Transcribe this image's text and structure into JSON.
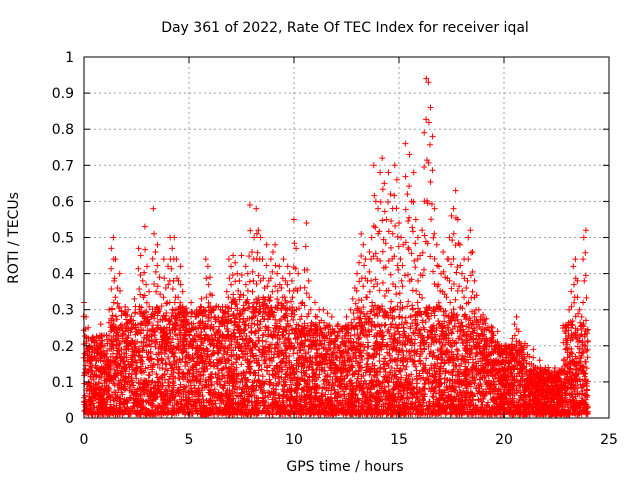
{
  "chart_data": {
    "type": "scatter",
    "title": "Day 361 of 2022, Rate Of TEC Index for receiver iqal",
    "xlabel": "GPS time / hours",
    "ylabel": "ROTI / TECUs",
    "xlim": [
      0,
      25
    ],
    "ylim": [
      0,
      1
    ],
    "x_ticks": [
      0,
      5,
      10,
      15,
      20,
      25
    ],
    "x_tick_labels": [
      "0",
      "5",
      "10",
      "15",
      "20",
      "25"
    ],
    "y_ticks": [
      0,
      0.1,
      0.2,
      0.3,
      0.4,
      0.5,
      0.6,
      0.7,
      0.8,
      0.9,
      1
    ],
    "y_tick_labels": [
      "0",
      "0.1",
      "0.2",
      "0.3",
      "0.4",
      "0.5",
      "0.6",
      "0.7",
      "0.8",
      "0.9",
      "1"
    ],
    "grid": true,
    "marker": "plus",
    "color": "#ff0000",
    "series": [
      {
        "name": "",
        "points": [
          [
            0.0,
            0.32
          ],
          [
            0.1,
            0.28
          ],
          [
            0.2,
            0.25
          ],
          [
            0.3,
            0.15
          ],
          [
            0.4,
            0.22
          ],
          [
            0.5,
            0.12
          ],
          [
            0.6,
            0.18
          ],
          [
            0.7,
            0.08
          ],
          [
            0.8,
            0.26
          ],
          [
            0.9,
            0.05
          ],
          [
            1.0,
            0.2
          ],
          [
            1.1,
            0.14
          ],
          [
            1.2,
            0.3
          ],
          [
            1.3,
            0.47
          ],
          [
            1.4,
            0.5
          ],
          [
            1.5,
            0.44
          ],
          [
            1.6,
            0.36
          ],
          [
            1.7,
            0.4
          ],
          [
            1.8,
            0.25
          ],
          [
            1.9,
            0.18
          ],
          [
            2.0,
            0.22
          ],
          [
            2.1,
            0.3
          ],
          [
            2.2,
            0.27
          ],
          [
            2.3,
            0.19
          ],
          [
            2.4,
            0.33
          ],
          [
            2.5,
            0.24
          ],
          [
            2.6,
            0.47
          ],
          [
            2.7,
            0.45
          ],
          [
            2.8,
            0.38
          ],
          [
            2.9,
            0.53
          ],
          [
            3.0,
            0.42
          ],
          [
            3.1,
            0.35
          ],
          [
            3.2,
            0.28
          ],
          [
            3.3,
            0.58
          ],
          [
            3.4,
            0.46
          ],
          [
            3.5,
            0.48
          ],
          [
            3.6,
            0.39
          ],
          [
            3.7,
            0.31
          ],
          [
            3.8,
            0.44
          ],
          [
            3.9,
            0.36
          ],
          [
            4.0,
            0.42
          ],
          [
            4.1,
            0.5
          ],
          [
            4.2,
            0.47
          ],
          [
            4.3,
            0.5
          ],
          [
            4.4,
            0.44
          ],
          [
            4.5,
            0.38
          ],
          [
            4.6,
            0.42
          ],
          [
            4.7,
            0.35
          ],
          [
            4.8,
            0.3
          ],
          [
            4.9,
            0.24
          ],
          [
            5.0,
            0.26
          ],
          [
            5.1,
            0.32
          ],
          [
            5.2,
            0.22
          ],
          [
            5.3,
            0.28
          ],
          [
            5.4,
            0.2
          ],
          [
            5.5,
            0.3
          ],
          [
            5.6,
            0.33
          ],
          [
            5.7,
            0.25
          ],
          [
            5.8,
            0.44
          ],
          [
            5.9,
            0.42
          ],
          [
            6.0,
            0.39
          ],
          [
            6.1,
            0.34
          ],
          [
            6.2,
            0.28
          ],
          [
            6.3,
            0.31
          ],
          [
            6.4,
            0.24
          ],
          [
            6.5,
            0.3
          ],
          [
            6.6,
            0.26
          ],
          [
            6.7,
            0.29
          ],
          [
            6.8,
            0.35
          ],
          [
            6.9,
            0.44
          ],
          [
            7.0,
            0.42
          ],
          [
            7.1,
            0.45
          ],
          [
            7.2,
            0.43
          ],
          [
            7.3,
            0.4
          ],
          [
            7.4,
            0.38
          ],
          [
            7.5,
            0.45
          ],
          [
            7.6,
            0.34
          ],
          [
            7.7,
            0.42
          ],
          [
            7.8,
            0.4
          ],
          [
            7.9,
            0.59
          ],
          [
            8.0,
            0.46
          ],
          [
            8.1,
            0.5
          ],
          [
            8.2,
            0.58
          ],
          [
            8.3,
            0.52
          ],
          [
            8.4,
            0.5
          ],
          [
            8.5,
            0.44
          ],
          [
            8.6,
            0.36
          ],
          [
            8.7,
            0.48
          ],
          [
            8.8,
            0.38
          ],
          [
            8.9,
            0.44
          ],
          [
            9.0,
            0.46
          ],
          [
            9.1,
            0.48
          ],
          [
            9.2,
            0.4
          ],
          [
            9.3,
            0.42
          ],
          [
            9.4,
            0.36
          ],
          [
            9.5,
            0.44
          ],
          [
            9.6,
            0.38
          ],
          [
            9.7,
            0.42
          ],
          [
            9.8,
            0.4
          ],
          [
            9.9,
            0.38
          ],
          [
            10.0,
            0.55
          ],
          [
            10.1,
            0.47
          ],
          [
            10.2,
            0.4
          ],
          [
            10.3,
            0.36
          ],
          [
            10.4,
            0.32
          ],
          [
            10.5,
            0.41
          ],
          [
            10.6,
            0.54
          ],
          [
            10.7,
            0.38
          ],
          [
            10.8,
            0.3
          ],
          [
            10.9,
            0.26
          ],
          [
            11.0,
            0.32
          ],
          [
            11.1,
            0.28
          ],
          [
            11.2,
            0.3
          ],
          [
            11.3,
            0.27
          ],
          [
            11.4,
            0.3
          ],
          [
            11.5,
            0.25
          ],
          [
            11.6,
            0.29
          ],
          [
            11.7,
            0.22
          ],
          [
            11.8,
            0.28
          ],
          [
            11.9,
            0.24
          ],
          [
            12.0,
            0.22
          ],
          [
            12.1,
            0.26
          ],
          [
            12.2,
            0.18
          ],
          [
            12.3,
            0.24
          ],
          [
            12.4,
            0.21
          ],
          [
            12.5,
            0.28
          ],
          [
            12.6,
            0.25
          ],
          [
            12.7,
            0.3
          ],
          [
            12.8,
            0.33
          ],
          [
            12.9,
            0.36
          ],
          [
            13.0,
            0.4
          ],
          [
            13.1,
            0.43
          ],
          [
            13.2,
            0.51
          ],
          [
            13.3,
            0.48
          ],
          [
            13.4,
            0.44
          ],
          [
            13.5,
            0.38
          ],
          [
            13.6,
            0.46
          ],
          [
            13.7,
            0.5
          ],
          [
            13.8,
            0.7
          ],
          [
            13.9,
            0.6
          ],
          [
            14.0,
            0.58
          ],
          [
            14.1,
            0.68
          ],
          [
            14.2,
            0.72
          ],
          [
            14.3,
            0.65
          ],
          [
            14.4,
            0.55
          ],
          [
            14.5,
            0.68
          ],
          [
            14.6,
            0.62
          ],
          [
            14.7,
            0.58
          ],
          [
            14.8,
            0.7
          ],
          [
            14.9,
            0.66
          ],
          [
            15.0,
            0.54
          ],
          [
            15.1,
            0.5
          ],
          [
            15.2,
            0.48
          ],
          [
            15.3,
            0.76
          ],
          [
            15.4,
            0.62
          ],
          [
            15.5,
            0.73
          ],
          [
            15.6,
            0.6
          ],
          [
            15.7,
            0.68
          ],
          [
            15.8,
            0.55
          ],
          [
            15.9,
            0.5
          ],
          [
            16.0,
            0.45
          ],
          [
            16.1,
            0.52
          ],
          [
            16.2,
            0.79
          ],
          [
            16.3,
            0.94
          ],
          [
            16.4,
            0.93
          ],
          [
            16.5,
            0.86
          ],
          [
            16.6,
            0.78
          ],
          [
            16.7,
            0.58
          ],
          [
            16.8,
            0.48
          ],
          [
            16.9,
            0.42
          ],
          [
            17.0,
            0.4
          ],
          [
            17.1,
            0.46
          ],
          [
            17.2,
            0.39
          ],
          [
            17.3,
            0.44
          ],
          [
            17.4,
            0.5
          ],
          [
            17.5,
            0.56
          ],
          [
            17.6,
            0.58
          ],
          [
            17.7,
            0.63
          ],
          [
            17.8,
            0.55
          ],
          [
            17.9,
            0.48
          ],
          [
            18.0,
            0.4
          ],
          [
            18.1,
            0.44
          ],
          [
            18.2,
            0.36
          ],
          [
            18.3,
            0.5
          ],
          [
            18.4,
            0.52
          ],
          [
            18.5,
            0.46
          ],
          [
            18.6,
            0.38
          ],
          [
            18.7,
            0.34
          ],
          [
            18.8,
            0.3
          ],
          [
            18.9,
            0.28
          ],
          [
            19.0,
            0.26
          ],
          [
            19.1,
            0.22
          ],
          [
            19.2,
            0.25
          ],
          [
            19.3,
            0.2
          ],
          [
            19.4,
            0.24
          ],
          [
            19.5,
            0.18
          ],
          [
            19.6,
            0.21
          ],
          [
            19.7,
            0.24
          ],
          [
            19.8,
            0.2
          ],
          [
            19.9,
            0.18
          ],
          [
            20.0,
            0.16
          ],
          [
            20.1,
            0.2
          ],
          [
            20.2,
            0.15
          ],
          [
            20.3,
            0.18
          ],
          [
            20.4,
            0.22
          ],
          [
            20.5,
            0.26
          ],
          [
            20.6,
            0.28
          ],
          [
            20.7,
            0.24
          ],
          [
            20.8,
            0.2
          ],
          [
            20.9,
            0.18
          ],
          [
            21.0,
            0.16
          ],
          [
            21.1,
            0.2
          ],
          [
            21.2,
            0.17
          ],
          [
            21.3,
            0.15
          ],
          [
            21.4,
            0.19
          ],
          [
            21.5,
            0.14
          ],
          [
            21.6,
            0.12
          ],
          [
            21.7,
            0.16
          ],
          [
            21.8,
            0.13
          ],
          [
            21.9,
            0.1
          ],
          [
            22.0,
            0.12
          ],
          [
            22.1,
            0.14
          ],
          [
            22.2,
            0.11
          ],
          [
            22.3,
            0.1
          ],
          [
            22.4,
            0.13
          ],
          [
            22.5,
            0.12
          ],
          [
            22.6,
            0.08
          ],
          [
            22.7,
            0.1
          ],
          [
            22.8,
            0.09
          ],
          [
            22.9,
            0.12
          ],
          [
            23.0,
            0.22
          ],
          [
            23.1,
            0.3
          ],
          [
            23.2,
            0.35
          ],
          [
            23.3,
            0.42
          ],
          [
            23.4,
            0.44
          ],
          [
            23.5,
            0.38
          ],
          [
            23.6,
            0.3
          ],
          [
            23.7,
            0.28
          ],
          [
            23.8,
            0.5
          ],
          [
            23.9,
            0.52
          ]
        ]
      }
    ],
    "noise_band": [
      {
        "x0": 0.0,
        "x1": 1.2,
        "ymax": 0.22
      },
      {
        "x0": 1.2,
        "x1": 4.0,
        "ymax": 0.3
      },
      {
        "x0": 4.0,
        "x1": 7.0,
        "ymax": 0.3
      },
      {
        "x0": 7.0,
        "x1": 10.0,
        "ymax": 0.32
      },
      {
        "x0": 10.0,
        "x1": 13.0,
        "ymax": 0.25
      },
      {
        "x0": 13.0,
        "x1": 17.0,
        "ymax": 0.3
      },
      {
        "x0": 17.0,
        "x1": 19.5,
        "ymax": 0.28
      },
      {
        "x0": 19.5,
        "x1": 21.0,
        "ymax": 0.2
      },
      {
        "x0": 21.0,
        "x1": 22.8,
        "ymax": 0.13
      },
      {
        "x0": 22.8,
        "x1": 24.0,
        "ymax": 0.25
      }
    ]
  }
}
